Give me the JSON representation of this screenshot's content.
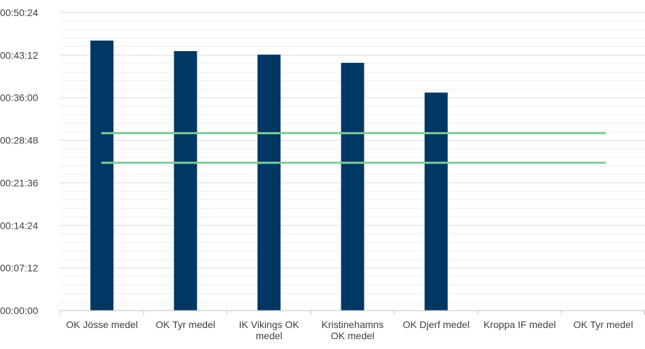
{
  "chart_data": {
    "type": "bar",
    "title": "",
    "xlabel": "",
    "ylabel": "",
    "categories": [
      "OK Jösse medel",
      "OK Tyr medel",
      "IK Vikings OK medel",
      "Kristinehamns OK medel",
      "OK Djerf medel",
      "Kroppa IF medel",
      "OK Tyr medel"
    ],
    "category_lines": [
      [
        "OK Jösse medel"
      ],
      [
        "OK Tyr medel"
      ],
      [
        "IK Vikings OK",
        "medel"
      ],
      [
        "Kristinehamns",
        "OK medel"
      ],
      [
        "OK Djerf medel"
      ],
      [
        "Kroppa IF medel"
      ],
      [
        "OK Tyr medel"
      ]
    ],
    "values_seconds": [
      2740,
      2633,
      2597,
      2514,
      2212,
      null,
      null
    ],
    "reference_lines_seconds": [
      1800,
      1500
    ],
    "ylim_seconds": [
      0,
      3024
    ],
    "major_tick_step_seconds": 432,
    "minor_tick_step_seconds": 86.4,
    "y_tick_labels": [
      "00:00:00",
      "00:07:12",
      "00:14:24",
      "00:21:36",
      "00:28:48",
      "00:36:00",
      "00:43:12",
      "00:50:24"
    ],
    "grid": true,
    "legend": "none"
  },
  "colors": {
    "bar": "#003865",
    "reference_line": "#7fcc99",
    "major_grid": "#d9d9d9",
    "minor_grid": "#eeeeee",
    "axis": "#bfbfbf",
    "text": "#404040"
  }
}
